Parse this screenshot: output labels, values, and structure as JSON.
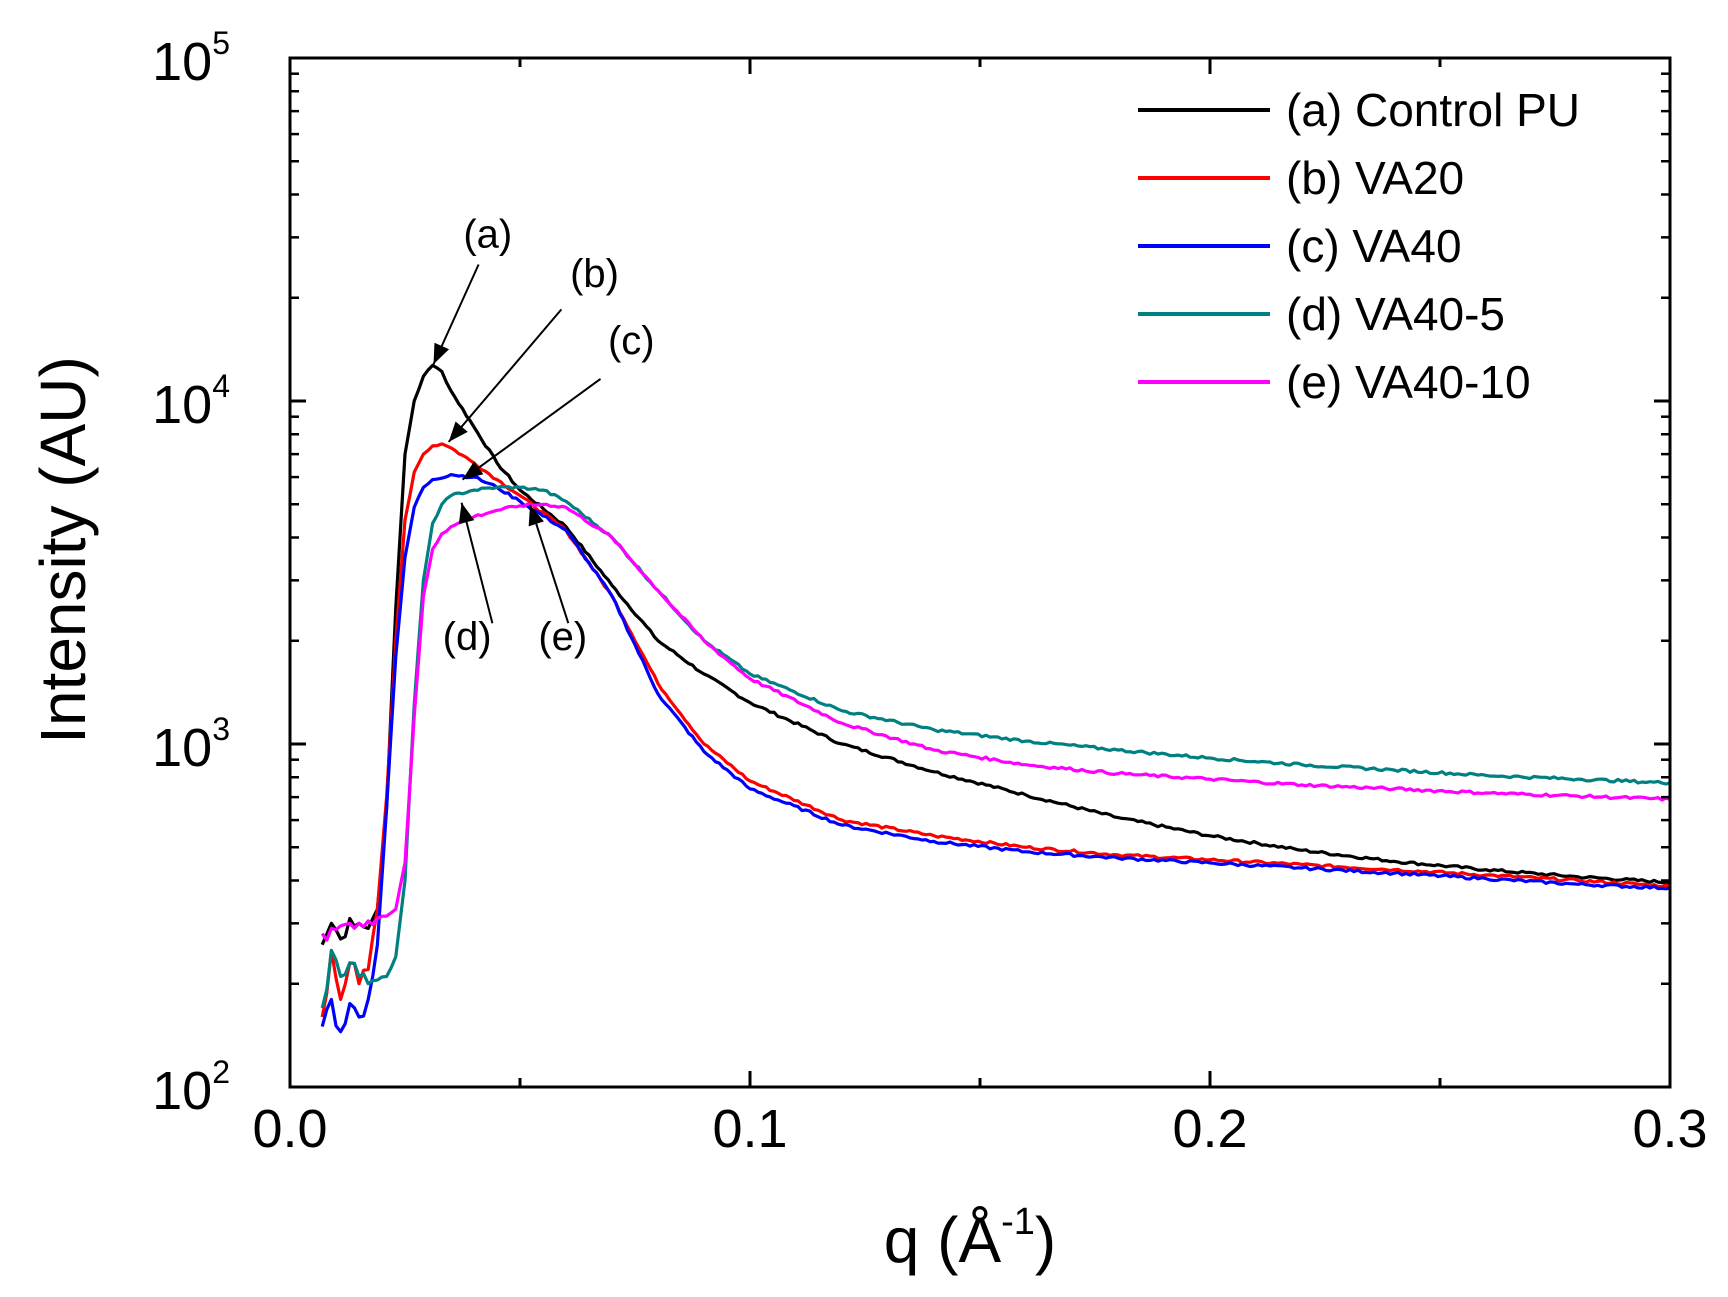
{
  "chart_data": {
    "type": "line",
    "title": "",
    "xlabel": "q (Å",
    "xlabel_sup": "-1",
    "xlabel_close": ")",
    "ylabel": "Intensity (AU)",
    "xlim": [
      0.0,
      0.3
    ],
    "ylim": [
      100,
      100000
    ],
    "yscale": "log",
    "grid": false,
    "legend_position": "top-right",
    "x_ticks": [
      {
        "value": 0.0,
        "label": "0.0"
      },
      {
        "value": 0.1,
        "label": "0.1"
      },
      {
        "value": 0.2,
        "label": "0.2"
      },
      {
        "value": 0.3,
        "label": "0.3"
      }
    ],
    "y_ticks": [
      {
        "value": 100,
        "base": "10",
        "exp": "2"
      },
      {
        "value": 1000,
        "base": "10",
        "exp": "3"
      },
      {
        "value": 10000,
        "base": "10",
        "exp": "4"
      },
      {
        "value": 100000,
        "base": "10",
        "exp": "5"
      }
    ],
    "series": [
      {
        "name": "(a) Control PU",
        "color": "#000000",
        "points": [
          [
            0.007,
            260
          ],
          [
            0.009,
            300
          ],
          [
            0.011,
            270
          ],
          [
            0.013,
            310
          ],
          [
            0.015,
            300
          ],
          [
            0.017,
            290
          ],
          [
            0.019,
            330
          ],
          [
            0.021,
            650
          ],
          [
            0.023,
            2500
          ],
          [
            0.025,
            7000
          ],
          [
            0.027,
            10000
          ],
          [
            0.029,
            11800
          ],
          [
            0.031,
            12700
          ],
          [
            0.033,
            12200
          ],
          [
            0.035,
            10700
          ],
          [
            0.04,
            8400
          ],
          [
            0.045,
            6600
          ],
          [
            0.05,
            5500
          ],
          [
            0.06,
            4300
          ],
          [
            0.07,
            2900
          ],
          [
            0.08,
            2000
          ],
          [
            0.09,
            1600
          ],
          [
            0.1,
            1320
          ],
          [
            0.12,
            1000
          ],
          [
            0.14,
            830
          ],
          [
            0.16,
            710
          ],
          [
            0.18,
            610
          ],
          [
            0.2,
            540
          ],
          [
            0.22,
            490
          ],
          [
            0.24,
            455
          ],
          [
            0.26,
            430
          ],
          [
            0.28,
            410
          ],
          [
            0.3,
            395
          ]
        ]
      },
      {
        "name": "(b) VA20",
        "color": "#ff0000",
        "points": [
          [
            0.007,
            160
          ],
          [
            0.009,
            250
          ],
          [
            0.011,
            180
          ],
          [
            0.013,
            230
          ],
          [
            0.015,
            200
          ],
          [
            0.017,
            220
          ],
          [
            0.019,
            330
          ],
          [
            0.021,
            700
          ],
          [
            0.023,
            2000
          ],
          [
            0.025,
            4500
          ],
          [
            0.027,
            6200
          ],
          [
            0.029,
            7000
          ],
          [
            0.031,
            7400
          ],
          [
            0.033,
            7500
          ],
          [
            0.035,
            7300
          ],
          [
            0.04,
            6600
          ],
          [
            0.045,
            5900
          ],
          [
            0.05,
            5300
          ],
          [
            0.06,
            4200
          ],
          [
            0.07,
            2700
          ],
          [
            0.08,
            1500
          ],
          [
            0.09,
            1000
          ],
          [
            0.1,
            780
          ],
          [
            0.12,
            600
          ],
          [
            0.14,
            540
          ],
          [
            0.16,
            500
          ],
          [
            0.18,
            475
          ],
          [
            0.2,
            460
          ],
          [
            0.22,
            445
          ],
          [
            0.24,
            430
          ],
          [
            0.26,
            415
          ],
          [
            0.28,
            400
          ],
          [
            0.3,
            385
          ]
        ]
      },
      {
        "name": "(c) VA40",
        "color": "#0000ff",
        "points": [
          [
            0.007,
            150
          ],
          [
            0.009,
            180
          ],
          [
            0.011,
            145
          ],
          [
            0.013,
            175
          ],
          [
            0.015,
            160
          ],
          [
            0.017,
            180
          ],
          [
            0.019,
            260
          ],
          [
            0.021,
            650
          ],
          [
            0.023,
            1800
          ],
          [
            0.025,
            3500
          ],
          [
            0.027,
            4900
          ],
          [
            0.029,
            5600
          ],
          [
            0.031,
            5900
          ],
          [
            0.035,
            6100
          ],
          [
            0.04,
            6000
          ],
          [
            0.045,
            5600
          ],
          [
            0.05,
            5100
          ],
          [
            0.06,
            4200
          ],
          [
            0.07,
            2700
          ],
          [
            0.08,
            1400
          ],
          [
            0.09,
            950
          ],
          [
            0.1,
            740
          ],
          [
            0.12,
            580
          ],
          [
            0.14,
            520
          ],
          [
            0.16,
            485
          ],
          [
            0.18,
            465
          ],
          [
            0.2,
            450
          ],
          [
            0.22,
            435
          ],
          [
            0.24,
            420
          ],
          [
            0.26,
            405
          ],
          [
            0.28,
            390
          ],
          [
            0.3,
            380
          ]
        ]
      },
      {
        "name": "(d) VA40-5",
        "color": "#008080",
        "points": [
          [
            0.007,
            170
          ],
          [
            0.009,
            250
          ],
          [
            0.011,
            210
          ],
          [
            0.013,
            230
          ],
          [
            0.015,
            210
          ],
          [
            0.017,
            200
          ],
          [
            0.019,
            205
          ],
          [
            0.021,
            210
          ],
          [
            0.023,
            240
          ],
          [
            0.025,
            400
          ],
          [
            0.027,
            1300
          ],
          [
            0.029,
            3000
          ],
          [
            0.031,
            4400
          ],
          [
            0.033,
            5000
          ],
          [
            0.035,
            5300
          ],
          [
            0.04,
            5500
          ],
          [
            0.045,
            5600
          ],
          [
            0.05,
            5600
          ],
          [
            0.055,
            5500
          ],
          [
            0.06,
            5100
          ],
          [
            0.07,
            4000
          ],
          [
            0.08,
            2800
          ],
          [
            0.09,
            2000
          ],
          [
            0.1,
            1600
          ],
          [
            0.12,
            1250
          ],
          [
            0.14,
            1100
          ],
          [
            0.16,
            1020
          ],
          [
            0.18,
            960
          ],
          [
            0.2,
            910
          ],
          [
            0.22,
            870
          ],
          [
            0.24,
            840
          ],
          [
            0.26,
            810
          ],
          [
            0.28,
            790
          ],
          [
            0.3,
            770
          ]
        ]
      },
      {
        "name": "(e) VA40-10",
        "color": "#ff00ff",
        "points": [
          [
            0.007,
            280
          ],
          [
            0.009,
            290
          ],
          [
            0.011,
            295
          ],
          [
            0.013,
            300
          ],
          [
            0.015,
            300
          ],
          [
            0.017,
            305
          ],
          [
            0.019,
            310
          ],
          [
            0.021,
            315
          ],
          [
            0.023,
            330
          ],
          [
            0.025,
            450
          ],
          [
            0.027,
            1200
          ],
          [
            0.029,
            2700
          ],
          [
            0.031,
            3700
          ],
          [
            0.033,
            4100
          ],
          [
            0.035,
            4300
          ],
          [
            0.04,
            4600
          ],
          [
            0.045,
            4800
          ],
          [
            0.05,
            4950
          ],
          [
            0.055,
            5000
          ],
          [
            0.06,
            4900
          ],
          [
            0.07,
            4000
          ],
          [
            0.08,
            2800
          ],
          [
            0.09,
            2000
          ],
          [
            0.1,
            1550
          ],
          [
            0.12,
            1150
          ],
          [
            0.14,
            960
          ],
          [
            0.16,
            870
          ],
          [
            0.18,
            820
          ],
          [
            0.2,
            790
          ],
          [
            0.22,
            760
          ],
          [
            0.24,
            740
          ],
          [
            0.26,
            720
          ],
          [
            0.28,
            705
          ],
          [
            0.3,
            690
          ]
        ]
      }
    ],
    "annotations": [
      {
        "label": "(a)",
        "tip": [
          0.0312,
          12800
        ],
        "tail": [
          0.041,
          25000
        ],
        "text_at": [
          0.043,
          28000
        ]
      },
      {
        "label": "(b)",
        "tip": [
          0.0345,
          7600
        ],
        "tail": [
          0.059,
          18500
        ],
        "text_at": [
          0.0662,
          21500
        ]
      },
      {
        "label": "(c)",
        "tip": [
          0.0375,
          5900
        ],
        "tail": [
          0.0675,
          11600
        ],
        "text_at": [
          0.0742,
          13700
        ]
      },
      {
        "label": "(d)",
        "tip": [
          0.0373,
          5050
        ],
        "tail": [
          0.044,
          2250
        ],
        "text_at": [
          0.0385,
          1880
        ]
      },
      {
        "label": "(e)",
        "tip": [
          0.0522,
          4980
        ],
        "tail": [
          0.0605,
          2250
        ],
        "text_at": [
          0.0593,
          1880
        ]
      }
    ]
  }
}
